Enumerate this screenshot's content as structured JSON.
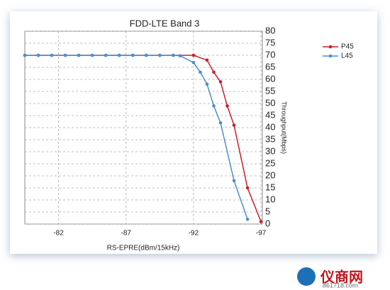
{
  "chart_data": {
    "type": "line",
    "title": "FDD-LTE Band 3",
    "xlabel": "RS-EPRE(dBm/15kHz)",
    "ylabel": "Throughput(Mbps)",
    "xlim": [
      -79.5,
      -97.1
    ],
    "xticks": [
      -82,
      -87,
      -92,
      -97
    ],
    "ylim": [
      0,
      80
    ],
    "yticks": [
      0,
      5,
      10,
      15,
      20,
      25,
      30,
      35,
      40,
      45,
      50,
      55,
      60,
      65,
      70,
      75,
      80
    ],
    "grid": true,
    "legend": "right",
    "series": [
      {
        "name": "P45",
        "color": "#c8202a",
        "x": [
          -79.5,
          -80.5,
          -81.5,
          -82.5,
          -83.5,
          -84.5,
          -85.5,
          -86.5,
          -87.5,
          -88.5,
          -89.5,
          -90.5,
          -92,
          -93,
          -93.5,
          -94,
          -94.5,
          -95,
          -96,
          -97
        ],
        "values": [
          70,
          70,
          70,
          70,
          70,
          70,
          70,
          70,
          70,
          70,
          70,
          70,
          70,
          68,
          63,
          59,
          49,
          41,
          15,
          1
        ]
      },
      {
        "name": "L45",
        "color": "#4a8fcf",
        "x": [
          -79.5,
          -80.5,
          -81.5,
          -82.5,
          -83.5,
          -84.5,
          -85.5,
          -86.5,
          -87.5,
          -88.5,
          -89.5,
          -90.5,
          -91,
          -92,
          -92.5,
          -93,
          -93.5,
          -94,
          -95,
          -96
        ],
        "values": [
          70,
          70,
          70,
          70,
          70,
          70,
          70,
          70,
          70,
          70,
          70,
          70,
          69.8,
          67,
          63,
          58,
          49,
          42,
          18,
          2
        ]
      }
    ]
  },
  "watermark": {
    "name": "仪商网",
    "url": "861718.com"
  }
}
